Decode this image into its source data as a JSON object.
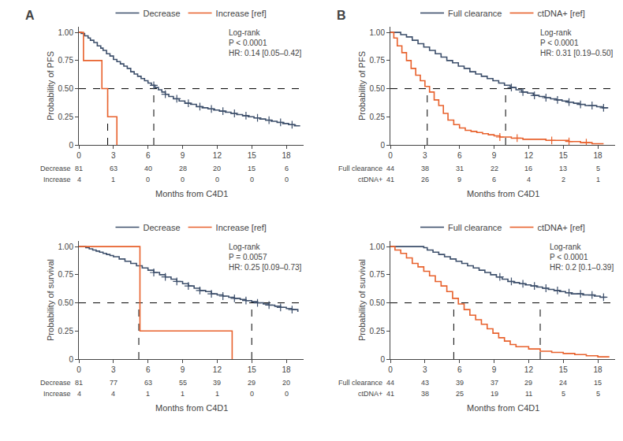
{
  "chart_data": [
    {
      "type": "line",
      "title": "A",
      "ylabel": "Probability of PFS",
      "xlabel": "Months from C4D1",
      "grid": false,
      "legend": "top",
      "annotations": [
        "Log-rank\nP < 0.0001\nHR: 0.14 [0.05–0.42]"
      ],
      "reference_y": 0.5,
      "median_x": [
        2.5,
        6.5
      ],
      "xlim": [
        0,
        19.5
      ],
      "xticks": [
        0,
        3,
        6,
        9,
        12,
        15,
        18
      ],
      "ylim": [
        0,
        1.05
      ],
      "yticks": [
        0,
        0.25,
        {
          "value": 0.5,
          "label": "0.50"
        },
        0.75,
        {
          "value": 1,
          "label": "1.00"
        }
      ],
      "at_risk": {
        "labels": [
          "Decrease",
          "Increase"
        ],
        "values": [
          [
            81,
            63,
            40,
            28,
            20,
            15,
            6
          ],
          [
            4,
            1,
            0,
            0,
            0,
            0,
            0
          ]
        ]
      },
      "series": [
        {
          "name": "Decrease",
          "color": "#3d4f6b",
          "line_style": "step",
          "marker": "plus",
          "x": [
            0,
            0.2,
            0.5,
            0.8,
            1.0,
            1.3,
            1.6,
            1.9,
            2.1,
            2.4,
            2.7,
            3.0,
            3.3,
            3.6,
            3.9,
            4.2,
            4.5,
            4.8,
            5.1,
            5.4,
            5.7,
            6.0,
            6.3,
            6.6,
            6.9,
            7.2,
            7.5,
            7.8,
            8.2,
            8.7,
            9.2,
            9.7,
            10.2,
            10.7,
            11.2,
            11.7,
            12.2,
            12.7,
            13.2,
            13.7,
            14.2,
            14.7,
            15.2,
            15.7,
            16.2,
            16.7,
            17.2,
            17.7,
            18.2,
            18.7,
            19.2
          ],
          "values": [
            1.0,
            0.99,
            0.97,
            0.95,
            0.93,
            0.91,
            0.88,
            0.86,
            0.84,
            0.81,
            0.79,
            0.76,
            0.74,
            0.72,
            0.7,
            0.68,
            0.65,
            0.63,
            0.61,
            0.59,
            0.57,
            0.55,
            0.53,
            0.51,
            0.49,
            0.47,
            0.45,
            0.43,
            0.41,
            0.39,
            0.37,
            0.36,
            0.34,
            0.33,
            0.32,
            0.31,
            0.3,
            0.29,
            0.28,
            0.27,
            0.26,
            0.25,
            0.24,
            0.23,
            0.22,
            0.21,
            0.2,
            0.19,
            0.18,
            0.17,
            0.17
          ],
          "censor_x": [
            6.5,
            7.5,
            8.5,
            9.5,
            10.5,
            11.5,
            12.5,
            13.5,
            14.5,
            15.5,
            16.5,
            17.5,
            18.5
          ],
          "censor_values": [
            0.53,
            0.45,
            0.41,
            0.37,
            0.34,
            0.32,
            0.3,
            0.28,
            0.26,
            0.24,
            0.22,
            0.2,
            0.18
          ]
        },
        {
          "name": "Increase [ref]",
          "color": "#e8612c",
          "line_style": "step",
          "marker": "plus",
          "x": [
            0,
            0.4,
            1.5,
            2.0,
            2.5,
            3.2,
            3.3
          ],
          "values": [
            1.0,
            0.75,
            0.75,
            0.5,
            0.25,
            0.25,
            0.0
          ]
        }
      ]
    },
    {
      "type": "line",
      "title": "B",
      "ylabel": "Probability of PFS",
      "xlabel": "Months from C4D1",
      "grid": false,
      "legend": "top",
      "annotations": [
        "Log-rank\nP < 0.0001\nHR: 0.31 [0.19–0.50]"
      ],
      "reference_y": 0.5,
      "median_x": [
        3.2,
        10.0
      ],
      "xlim": [
        0,
        19.5
      ],
      "xticks": [
        0,
        3,
        6,
        9,
        12,
        15,
        18
      ],
      "ylim": [
        0,
        1.05
      ],
      "yticks": [
        0,
        0.25,
        {
          "value": 0.5,
          "label": "0.50"
        },
        0.75,
        {
          "value": 1,
          "label": "1.00"
        }
      ],
      "at_risk": {
        "labels": [
          "Full clearance",
          "ctDNA+"
        ],
        "values": [
          [
            44,
            38,
            31,
            22,
            16,
            13,
            5
          ],
          [
            41,
            26,
            9,
            6,
            4,
            2,
            1
          ]
        ]
      },
      "series": [
        {
          "name": "Full clearance",
          "color": "#3d4f6b",
          "line_style": "step",
          "marker": "plus",
          "x": [
            0,
            0.4,
            0.9,
            1.4,
            1.9,
            2.4,
            2.9,
            3.4,
            3.9,
            4.4,
            4.9,
            5.4,
            5.9,
            6.4,
            6.9,
            7.4,
            7.9,
            8.4,
            8.9,
            9.4,
            9.9,
            10.4,
            10.9,
            11.4,
            11.9,
            12.4,
            12.9,
            13.4,
            13.9,
            14.4,
            14.9,
            15.4,
            15.9,
            16.4,
            16.9,
            17.4,
            17.9,
            18.4,
            18.9
          ],
          "values": [
            1.0,
            1.0,
            0.98,
            0.96,
            0.93,
            0.9,
            0.87,
            0.84,
            0.81,
            0.78,
            0.75,
            0.73,
            0.7,
            0.68,
            0.65,
            0.63,
            0.61,
            0.59,
            0.57,
            0.55,
            0.53,
            0.51,
            0.49,
            0.47,
            0.46,
            0.44,
            0.43,
            0.42,
            0.41,
            0.4,
            0.39,
            0.38,
            0.37,
            0.36,
            0.35,
            0.35,
            0.34,
            0.33,
            0.33
          ],
          "censor_x": [
            10.5,
            11.5,
            12.5,
            13.5,
            14.5,
            15.5,
            16.5,
            17.5,
            18.5
          ],
          "censor_values": [
            0.51,
            0.47,
            0.44,
            0.42,
            0.4,
            0.38,
            0.36,
            0.35,
            0.33
          ]
        },
        {
          "name": "ctDNA+ [ref]",
          "color": "#e8612c",
          "line_style": "step",
          "marker": "plus",
          "x": [
            0,
            0.3,
            0.6,
            1.0,
            1.4,
            1.8,
            2.2,
            2.6,
            3.0,
            3.4,
            3.8,
            4.2,
            4.6,
            5.0,
            5.5,
            6.0,
            6.5,
            7.0,
            7.5,
            8.0,
            8.5,
            9.0,
            9.5,
            10.0,
            10.5,
            11.5,
            12.5,
            13.5,
            14.5,
            15.5,
            16.5,
            17.5,
            18.5
          ],
          "values": [
            1.0,
            0.95,
            0.88,
            0.82,
            0.75,
            0.68,
            0.62,
            0.57,
            0.52,
            0.47,
            0.4,
            0.35,
            0.28,
            0.22,
            0.18,
            0.15,
            0.13,
            0.12,
            0.11,
            0.1,
            0.09,
            0.08,
            0.07,
            0.07,
            0.06,
            0.05,
            0.05,
            0.04,
            0.04,
            0.03,
            0.02,
            0.01,
            0.01
          ],
          "censor_x": [
            9.5,
            11.0,
            14.0,
            15.5,
            17.0
          ],
          "censor_values": [
            0.07,
            0.06,
            0.04,
            0.03,
            0.02
          ]
        }
      ]
    },
    {
      "type": "line",
      "ylabel": "Probability of survival",
      "xlabel": "Months from C4D1",
      "grid": false,
      "legend": "top",
      "annotations": [
        "Log-rank\nP = 0.0057\nHR: 0.25 [0.09–0.73]"
      ],
      "reference_y": 0.5,
      "median_x": [
        5.2,
        15.0
      ],
      "xlim": [
        0,
        19.5
      ],
      "xticks": [
        0,
        3,
        6,
        9,
        12,
        15,
        18
      ],
      "ylim": [
        0,
        1.05
      ],
      "yticks": [
        0,
        0.25,
        {
          "value": 0.5,
          "label": "0.50"
        },
        0.75,
        {
          "value": 1,
          "label": "1.00"
        }
      ],
      "at_risk": {
        "labels": [
          "Decrease",
          "Increase"
        ],
        "values": [
          [
            81,
            77,
            63,
            55,
            39,
            29,
            20
          ],
          [
            4,
            4,
            1,
            1,
            1,
            0,
            0
          ]
        ]
      },
      "series": [
        {
          "name": "Decrease",
          "color": "#3d4f6b",
          "line_style": "step",
          "marker": "plus",
          "x": [
            0,
            0.3,
            0.6,
            0.9,
            1.2,
            1.5,
            1.8,
            2.1,
            2.4,
            2.7,
            3.0,
            3.5,
            4.0,
            4.5,
            5.0,
            5.5,
            6.0,
            6.5,
            7.0,
            7.5,
            8.0,
            8.5,
            9.0,
            9.5,
            10.0,
            10.5,
            11.0,
            11.5,
            12.0,
            12.5,
            13.0,
            13.5,
            14.0,
            14.5,
            15.0,
            15.5,
            16.0,
            16.5,
            17.0,
            17.5,
            18.0,
            18.5,
            19.0
          ],
          "values": [
            1.0,
            1.0,
            0.99,
            0.98,
            0.97,
            0.96,
            0.95,
            0.94,
            0.93,
            0.92,
            0.91,
            0.89,
            0.87,
            0.85,
            0.83,
            0.81,
            0.79,
            0.77,
            0.75,
            0.73,
            0.71,
            0.69,
            0.67,
            0.65,
            0.63,
            0.61,
            0.6,
            0.58,
            0.57,
            0.56,
            0.55,
            0.54,
            0.53,
            0.52,
            0.51,
            0.5,
            0.49,
            0.48,
            0.47,
            0.46,
            0.45,
            0.44,
            0.42
          ],
          "censor_x": [
            6.5,
            7.5,
            8.5,
            9.5,
            10.5,
            11.5,
            12.5,
            13.5,
            14.5,
            15.5,
            16.5,
            17.5,
            18.5
          ],
          "censor_values": [
            0.77,
            0.73,
            0.69,
            0.65,
            0.61,
            0.58,
            0.56,
            0.54,
            0.52,
            0.5,
            0.48,
            0.46,
            0.44
          ]
        },
        {
          "name": "Increase [ref]",
          "color": "#e8612c",
          "line_style": "step",
          "marker": "plus",
          "x": [
            0,
            1.8,
            5.0,
            5.3,
            13.2,
            13.3
          ],
          "values": [
            1.0,
            1.0,
            1.0,
            0.25,
            0.25,
            0.0
          ]
        }
      ]
    },
    {
      "type": "line",
      "ylabel": "Probability of survival",
      "xlabel": "Months from C4D1",
      "grid": false,
      "legend": "top",
      "annotations": [
        "Log-rank\nP < 0.0001\nHR: 0.2 [0.1–0.39]"
      ],
      "reference_y": 0.5,
      "median_x": [
        5.5,
        13.0
      ],
      "xlim": [
        0,
        19.5
      ],
      "xticks": [
        0,
        3,
        6,
        9,
        12,
        15,
        18
      ],
      "ylim": [
        0,
        1.05
      ],
      "yticks": [
        0,
        0.25,
        {
          "value": 0.5,
          "label": "0.50"
        },
        0.75,
        {
          "value": 1,
          "label": "1.00"
        }
      ],
      "at_risk": {
        "labels": [
          "Full clearance",
          "ctDNA+"
        ],
        "values": [
          [
            44,
            43,
            39,
            37,
            29,
            24,
            15
          ],
          [
            41,
            38,
            25,
            19,
            11,
            5,
            5
          ]
        ]
      },
      "series": [
        {
          "name": "Full clearance",
          "color": "#3d4f6b",
          "line_style": "step",
          "marker": "plus",
          "x": [
            0,
            0.4,
            0.9,
            1.4,
            1.9,
            2.4,
            2.9,
            3.2,
            3.7,
            4.2,
            4.7,
            5.2,
            5.7,
            6.2,
            6.7,
            7.2,
            7.7,
            8.2,
            8.7,
            9.2,
            9.7,
            10.2,
            10.7,
            11.2,
            11.7,
            12.2,
            12.7,
            13.2,
            13.7,
            14.2,
            14.7,
            15.2,
            15.7,
            16.2,
            16.7,
            17.2,
            17.7,
            18.2,
            18.7
          ],
          "values": [
            1.0,
            1.0,
            1.0,
            1.0,
            1.0,
            1.0,
            0.99,
            0.97,
            0.95,
            0.93,
            0.91,
            0.89,
            0.87,
            0.85,
            0.83,
            0.81,
            0.79,
            0.77,
            0.75,
            0.73,
            0.71,
            0.69,
            0.68,
            0.67,
            0.66,
            0.65,
            0.64,
            0.63,
            0.62,
            0.61,
            0.6,
            0.59,
            0.58,
            0.58,
            0.57,
            0.57,
            0.56,
            0.55,
            0.55
          ],
          "censor_x": [
            9.5,
            10.5,
            11.5,
            12.5,
            13.5,
            14.5,
            15.5,
            16.5,
            17.5,
            18.5
          ],
          "censor_values": [
            0.73,
            0.69,
            0.67,
            0.65,
            0.63,
            0.61,
            0.59,
            0.58,
            0.57,
            0.55
          ]
        },
        {
          "name": "ctDNA+ [ref]",
          "color": "#e8612c",
          "line_style": "step",
          "marker": "plus",
          "x": [
            0,
            0.4,
            0.9,
            1.4,
            1.9,
            2.4,
            2.9,
            3.4,
            3.9,
            4.4,
            4.9,
            5.4,
            5.9,
            6.4,
            6.9,
            7.4,
            7.9,
            8.4,
            8.9,
            9.4,
            9.9,
            10.4,
            10.9,
            12.0,
            13.0,
            14.0,
            15.0,
            16.0,
            17.0,
            18.0,
            19.0
          ],
          "values": [
            1.0,
            0.97,
            0.94,
            0.9,
            0.85,
            0.82,
            0.78,
            0.74,
            0.69,
            0.65,
            0.6,
            0.54,
            0.49,
            0.44,
            0.39,
            0.35,
            0.31,
            0.27,
            0.23,
            0.19,
            0.16,
            0.13,
            0.11,
            0.09,
            0.07,
            0.06,
            0.05,
            0.04,
            0.03,
            0.02,
            0.02
          ]
        }
      ]
    }
  ]
}
